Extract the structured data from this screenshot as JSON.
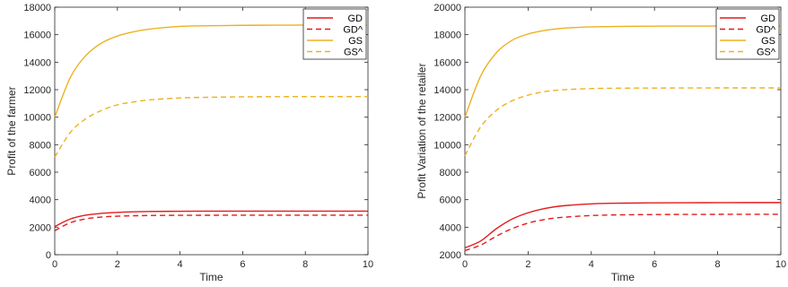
{
  "chart_data": [
    {
      "type": "line",
      "xlabel": "Time",
      "ylabel": "Profit of the farmer",
      "xlim": [
        0,
        10
      ],
      "ylim": [
        0,
        18000
      ],
      "xticks": [
        "0",
        "2",
        "4",
        "6",
        "8",
        "10"
      ],
      "yticks": [
        "0",
        "2000",
        "4000",
        "6000",
        "8000",
        "10000",
        "12000",
        "14000",
        "16000",
        "18000"
      ],
      "grid": false,
      "legend_position": "top-right",
      "x": [
        0,
        0.5,
        1,
        1.5,
        2,
        2.5,
        3,
        4,
        5,
        6,
        7,
        8,
        9,
        10
      ],
      "series": [
        {
          "name": "GD",
          "color": "#e41a1c",
          "dash": "solid",
          "values": [
            2050,
            2600,
            2880,
            3010,
            3080,
            3120,
            3140,
            3160,
            3165,
            3168,
            3170,
            3170,
            3170,
            3170
          ]
        },
        {
          "name": "GD^",
          "color": "#e41a1c",
          "dash": "dashed",
          "values": [
            1750,
            2330,
            2610,
            2740,
            2800,
            2830,
            2850,
            2865,
            2870,
            2872,
            2873,
            2873,
            2873,
            2873
          ]
        },
        {
          "name": "GS",
          "color": "#edb120",
          "dash": "solid",
          "values": [
            10000,
            12900,
            14500,
            15400,
            15900,
            16200,
            16400,
            16600,
            16650,
            16680,
            16690,
            16700,
            16700,
            16700
          ]
        },
        {
          "name": "GS^",
          "color": "#edb120",
          "dash": "dashed",
          "values": [
            7100,
            8900,
            9900,
            10500,
            10900,
            11100,
            11250,
            11400,
            11450,
            11480,
            11490,
            11500,
            11500,
            11500
          ]
        }
      ]
    },
    {
      "type": "line",
      "xlabel": "Time",
      "ylabel": "Profit Variation of the retailer",
      "xlim": [
        0,
        10
      ],
      "ylim": [
        2000,
        20000
      ],
      "xticks": [
        "0",
        "2",
        "4",
        "6",
        "8",
        "10"
      ],
      "yticks": [
        "2000",
        "4000",
        "6000",
        "8000",
        "10000",
        "12000",
        "14000",
        "16000",
        "18000",
        "20000"
      ],
      "grid": false,
      "legend_position": "top-right",
      "x": [
        0,
        0.5,
        1,
        1.5,
        2,
        2.5,
        3,
        4,
        5,
        6,
        7,
        8,
        9,
        10
      ],
      "series": [
        {
          "name": "GD",
          "color": "#e41a1c",
          "dash": "solid",
          "values": [
            2500,
            3000,
            3900,
            4600,
            5050,
            5350,
            5530,
            5700,
            5750,
            5770,
            5780,
            5785,
            5790,
            5790
          ]
        },
        {
          "name": "GD^",
          "color": "#e41a1c",
          "dash": "dashed",
          "values": [
            2300,
            2700,
            3350,
            3900,
            4300,
            4550,
            4700,
            4850,
            4900,
            4920,
            4930,
            4935,
            4940,
            4940
          ]
        },
        {
          "name": "GS",
          "color": "#edb120",
          "dash": "solid",
          "values": [
            12000,
            15000,
            16700,
            17600,
            18050,
            18300,
            18450,
            18570,
            18600,
            18620,
            18625,
            18630,
            18630,
            18630
          ]
        },
        {
          "name": "GS^",
          "color": "#edb120",
          "dash": "dashed",
          "values": [
            9200,
            11300,
            12500,
            13200,
            13600,
            13850,
            13980,
            14080,
            14110,
            14120,
            14125,
            14130,
            14130,
            14130
          ]
        }
      ]
    }
  ]
}
